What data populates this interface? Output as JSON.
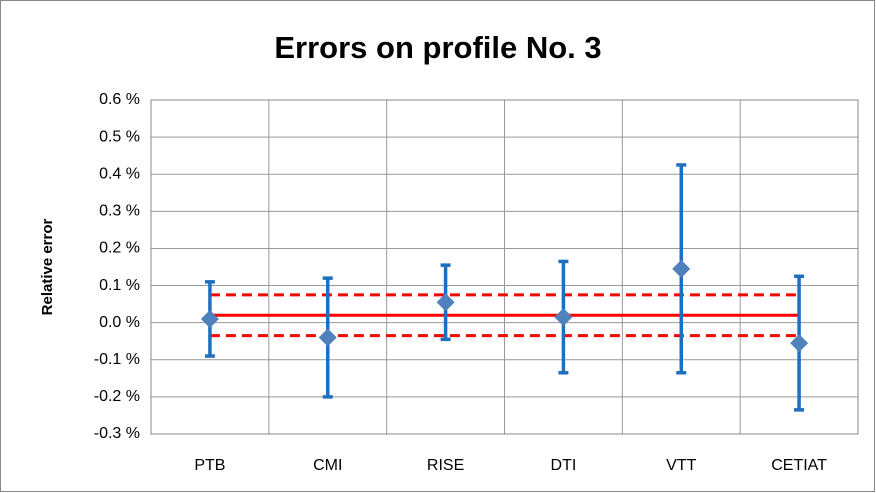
{
  "chart_data": {
    "type": "errorbar",
    "title": "Errors on profile No. 3",
    "y_label": "Relative error",
    "categories": [
      "PTB",
      "CMI",
      "RISE",
      "DTI",
      "VTT",
      "CETIAT"
    ],
    "values": [
      0.01,
      -0.04,
      0.055,
      0.015,
      0.145,
      -0.055
    ],
    "errors": [
      0.1,
      0.16,
      0.1,
      0.15,
      0.28,
      0.18
    ],
    "marker_color": "#4f81bd",
    "errorbar_color": "#1f6fbf",
    "mean": 0.02,
    "band": [
      -0.035,
      0.075
    ],
    "reference_color": "#ff0000",
    "ylim": [
      -0.3,
      0.6
    ],
    "yticks": [
      {
        "value": -0.3,
        "label": "-0.3 %"
      },
      {
        "value": -0.2,
        "label": "-0.2 %"
      },
      {
        "value": -0.1,
        "label": "-0.1 %"
      },
      {
        "value": 0.0,
        "label": "0.0 %"
      },
      {
        "value": 0.1,
        "label": "0.1 %"
      },
      {
        "value": 0.2,
        "label": "0.2 %"
      },
      {
        "value": 0.3,
        "label": "0.3 %"
      },
      {
        "value": 0.4,
        "label": "0.4 %"
      },
      {
        "value": 0.5,
        "label": "0.5 %"
      },
      {
        "value": 0.6,
        "label": "0.6 %"
      }
    ],
    "grid": true
  }
}
